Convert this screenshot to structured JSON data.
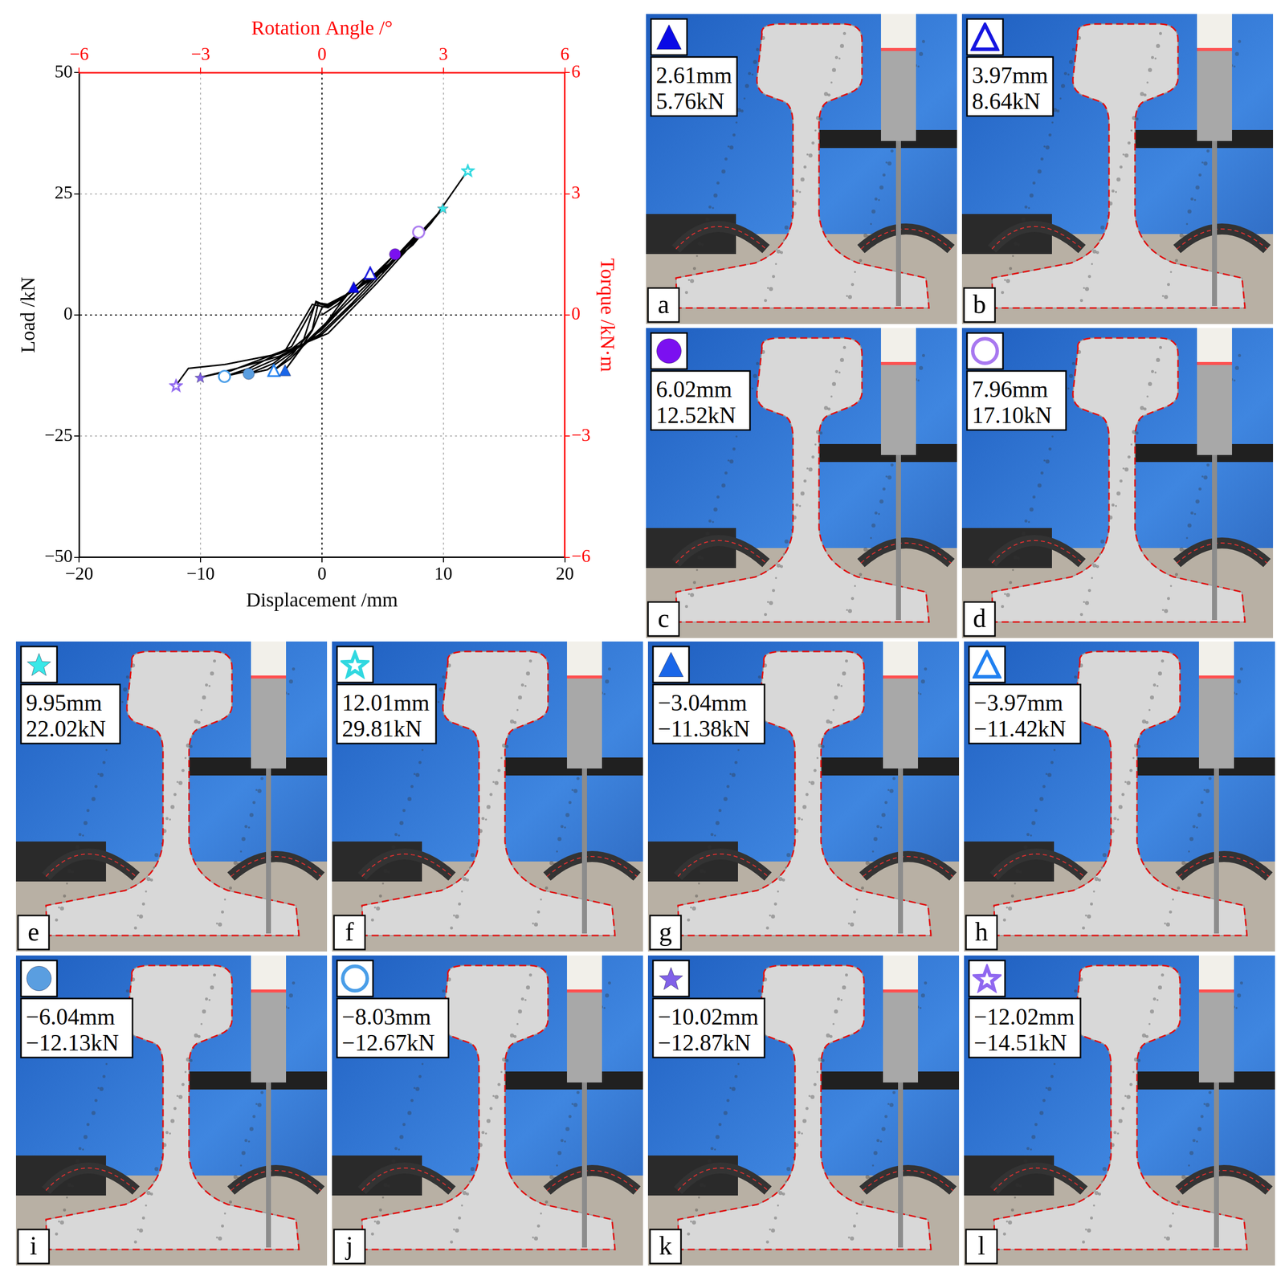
{
  "chart_data": {
    "type": "line",
    "x_label": "Displacement /mm",
    "y_label": "Load /kN",
    "x2_label": "Rotation Angle /°",
    "y2_label": "Torque /kN·m",
    "xlim": [
      -20,
      20
    ],
    "xticks": [
      {
        "value": -20,
        "label": "−20"
      },
      {
        "value": -10,
        "label": "−10"
      },
      0,
      10,
      20
    ],
    "ylim": [
      -50,
      50
    ],
    "yticks": [
      {
        "value": -50,
        "label": "−50"
      },
      {
        "value": -25,
        "label": "−25"
      },
      0,
      25,
      50
    ],
    "x2lim": [
      -6,
      6
    ],
    "x2ticks": [
      {
        "value": -6,
        "label": "−6"
      },
      {
        "value": -3,
        "label": "−3"
      },
      0,
      3,
      6
    ],
    "y2lim": [
      -6,
      6
    ],
    "y2ticks": [
      {
        "value": -6,
        "label": "−6"
      },
      {
        "value": -3,
        "label": "−3"
      },
      0,
      3,
      6
    ],
    "grid": true,
    "series": [
      {
        "color": "#000000",
        "x": [
          0,
          1.3,
          2.61,
          1.4,
          0,
          -1.6,
          -3.04,
          -2.0,
          -0.8,
          0,
          1.8,
          3.97,
          2.4,
          0.6,
          -1.0,
          -2.6,
          -3.97,
          -2.4,
          -0.8,
          -0.3,
          0.5,
          2.5,
          4.5,
          6.02,
          4.0,
          1.5,
          0,
          -2.5,
          -4.5,
          -6.04,
          -4.0,
          -1.5,
          -0.5,
          0.3,
          3.0,
          6.0,
          7.96,
          5.5,
          2.5,
          -0.2,
          -3.0,
          -6.0,
          -8.03,
          -6.0,
          -2.5,
          -0.5,
          0.5,
          4.0,
          7.5,
          9.95,
          7.0,
          3.5,
          0,
          -3.5,
          -7.0,
          -10.02,
          -7.5,
          -3.0,
          -0.8,
          0.5,
          5.0,
          9.0,
          12.01,
          9.0,
          4.5,
          0.5,
          -3.5,
          -8.0,
          -11.0,
          -12.02
        ],
        "values": [
          0,
          2.2,
          5.76,
          2.0,
          -2.8,
          -6.5,
          -11.38,
          -7.8,
          -3.2,
          1.5,
          3.8,
          8.64,
          4.0,
          -1.0,
          -4.8,
          -9.0,
          -11.42,
          -8.0,
          -3.0,
          2.5,
          2.2,
          4.8,
          8.8,
          12.52,
          7.0,
          1.0,
          -3.0,
          -7.8,
          -11.3,
          -12.13,
          -10.0,
          -5.0,
          2.8,
          2.0,
          5.5,
          11.5,
          17.1,
          10.5,
          2.5,
          -4.0,
          -8.2,
          -11.5,
          -12.67,
          -11.0,
          -6.5,
          2.5,
          1.8,
          7.2,
          14.5,
          22.02,
          14.0,
          4.5,
          -4.0,
          -8.5,
          -11.0,
          -12.87,
          -11.5,
          -7.2,
          2.2,
          1.5,
          9.0,
          19.0,
          29.81,
          19.0,
          6.5,
          -3.8,
          -8.0,
          -10.2,
          -11.0,
          -14.51
        ]
      }
    ],
    "points": [
      {
        "x": 2.61,
        "y": 5.76,
        "marker": "triangle",
        "color": "#0a0ae6"
      },
      {
        "x": 3.97,
        "y": 8.64,
        "marker": "triangle-open",
        "color": "#1515e0"
      },
      {
        "x": 6.02,
        "y": 12.52,
        "marker": "circle",
        "color": "#7b10f0"
      },
      {
        "x": 7.96,
        "y": 17.1,
        "marker": "circle-open",
        "color": "#a878f0"
      },
      {
        "x": 9.95,
        "y": 22.02,
        "marker": "star",
        "color": "#3ae8e8"
      },
      {
        "x": 12.01,
        "y": 29.81,
        "marker": "star-open",
        "color": "#30d8e0"
      },
      {
        "x": -3.04,
        "y": -11.38,
        "marker": "triangle",
        "color": "#1a66e8"
      },
      {
        "x": -3.97,
        "y": -11.42,
        "marker": "triangle-open",
        "color": "#2080f0"
      },
      {
        "x": -6.04,
        "y": -12.13,
        "marker": "circle",
        "color": "#5a9ee0"
      },
      {
        "x": -8.03,
        "y": -12.67,
        "marker": "circle-open",
        "color": "#4a9ee8"
      },
      {
        "x": -10.02,
        "y": -12.87,
        "marker": "star",
        "color": "#8060e8"
      },
      {
        "x": -12.02,
        "y": -14.51,
        "marker": "star-open",
        "color": "#9068f0"
      }
    ]
  },
  "panels": [
    {
      "label": "a",
      "marker": "triangle",
      "color": "#0a0ae6",
      "displacement": "2.61mm",
      "load": "5.76kN"
    },
    {
      "label": "b",
      "marker": "triangle-open",
      "color": "#1515e0",
      "displacement": "3.97mm",
      "load": "8.64kN"
    },
    {
      "label": "c",
      "marker": "circle",
      "color": "#7b10f0",
      "displacement": "6.02mm",
      "load": "12.52kN"
    },
    {
      "label": "d",
      "marker": "circle-open",
      "color": "#a878f0",
      "displacement": "7.96mm",
      "load": "17.10kN"
    },
    {
      "label": "e",
      "marker": "star",
      "color": "#3ae8e8",
      "displacement": "9.95mm",
      "load": "22.02kN"
    },
    {
      "label": "f",
      "marker": "star-open",
      "color": "#30d8e0",
      "displacement": "12.01mm",
      "load": "29.81kN"
    },
    {
      "label": "g",
      "marker": "triangle",
      "color": "#1a66e8",
      "displacement": "−3.04mm",
      "load": "−11.38kN"
    },
    {
      "label": "h",
      "marker": "triangle-open",
      "color": "#2080f0",
      "displacement": "−3.97mm",
      "load": "−11.42kN"
    },
    {
      "label": "i",
      "marker": "circle",
      "color": "#5a9ee0",
      "displacement": "−6.04mm",
      "load": "−12.13kN"
    },
    {
      "label": "j",
      "marker": "circle-open",
      "color": "#4a9ee8",
      "displacement": "−8.03mm",
      "load": "−12.67kN"
    },
    {
      "label": "k",
      "marker": "star",
      "color": "#8060e8",
      "displacement": "−10.02mm",
      "load": "−12.87kN"
    },
    {
      "label": "l",
      "marker": "star-open",
      "color": "#9068f0",
      "displacement": "−12.02mm",
      "load": "−14.51kN"
    }
  ]
}
